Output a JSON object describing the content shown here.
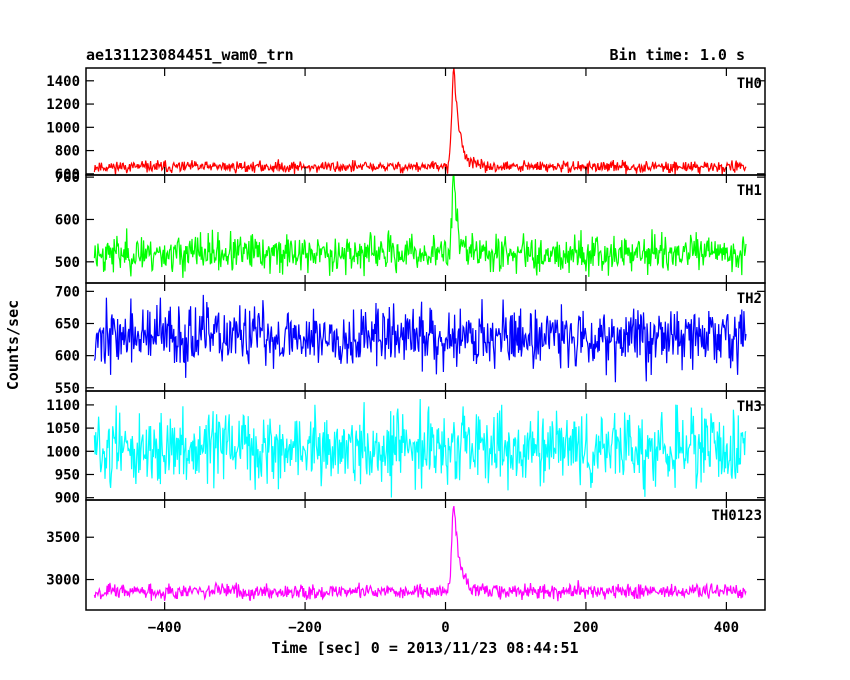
{
  "chart_data": {
    "type": "line",
    "title_left": "ae131123084451_wam0_trn",
    "title_right": "Bin time: 1.0 s",
    "xlabel": "Time [sec] 0 = 2013/11/23 08:44:51",
    "ylabel": "Counts/sec",
    "xlim": [
      -512,
      455
    ],
    "x_data_range": [
      -500,
      428
    ],
    "x_ticks": [
      -400,
      -200,
      0,
      200,
      400
    ],
    "x_tick_labels": [
      "−400",
      "−200",
      "0",
      "200",
      "400"
    ],
    "peak_time": 12,
    "panels": [
      {
        "name": "TH0",
        "color": "#ff0000",
        "ylim": [
          590,
          1510
        ],
        "ticks": [
          600,
          800,
          1000,
          1200,
          1400
        ],
        "tick_labels": [
          "600",
          "800",
          "1000",
          "1200",
          "1400"
        ],
        "baseline": 660,
        "noise": 25,
        "peak": 1500,
        "decay": 8,
        "seed": 11
      },
      {
        "name": "TH1",
        "color": "#00ff00",
        "ylim": [
          450,
          705
        ],
        "ticks": [
          500,
          600,
          700
        ],
        "tick_labels": [
          "500",
          "600",
          "700"
        ],
        "baseline": 520,
        "noise": 22,
        "peak": 695,
        "decay": 6,
        "seed": 23
      },
      {
        "name": "TH2",
        "color": "#0000ff",
        "ylim": [
          545,
          713
        ],
        "ticks": [
          550,
          600,
          650,
          700
        ],
        "tick_labels": [
          "550",
          "600",
          "650",
          "700"
        ],
        "baseline": 630,
        "noise": 24,
        "peak": 0,
        "decay": 1,
        "seed": 37
      },
      {
        "name": "TH3",
        "color": "#00ffff",
        "ylim": [
          895,
          1130
        ],
        "ticks": [
          900,
          950,
          1000,
          1050,
          1100
        ],
        "tick_labels": [
          "900",
          "950",
          "1000",
          "1050",
          "1100"
        ],
        "baseline": 1005,
        "noise": 38,
        "peak": 0,
        "decay": 1,
        "seed": 51
      },
      {
        "name": "TH0123",
        "color": "#ff00ff",
        "ylim": [
          2640,
          3940
        ],
        "ticks": [
          3000,
          3500
        ],
        "tick_labels": [
          "3000",
          "3500"
        ],
        "baseline": 2860,
        "noise": 45,
        "peak": 3900,
        "decay": 8,
        "seed": 67
      }
    ]
  }
}
